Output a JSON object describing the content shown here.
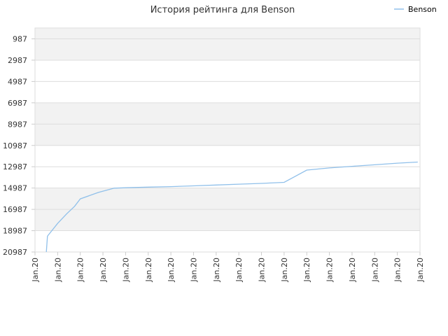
{
  "chart_data": {
    "type": "line",
    "title": "История рейтинга для Benson",
    "xlabel": "",
    "ylabel": "",
    "y_inverted": true,
    "ylim": [
      20987,
      0
    ],
    "y_ticks": [
      "987",
      "2987",
      "4987",
      "6987",
      "8987",
      "10987",
      "12987",
      "14987",
      "16987",
      "18987",
      "20987"
    ],
    "x_ticks": [
      "Jan.20",
      "Jan.20",
      "Jan.20",
      "Jan.20",
      "Jan.20",
      "Jan.20",
      "Jan.20",
      "Jan.20",
      "Jan.20",
      "Jan.20",
      "Jan.20",
      "Jan.20",
      "Jan.20",
      "Jan.20",
      "Jan.20",
      "Jan.20",
      "Jan.20",
      "Jan.20"
    ],
    "grid": true,
    "legend": "top-right",
    "colors": {
      "line": "#90c0ea",
      "band": "#f2f2f2",
      "grid": "#dddddd"
    },
    "series": [
      {
        "name": "Benson",
        "x": [
          0.5,
          0.55,
          1.0,
          1.4,
          1.75,
          2.0,
          2.8,
          3.5,
          4.0,
          5.0,
          6.0,
          7.0,
          8.0,
          9.0,
          10.0,
          11.0,
          12.0,
          13.0,
          14.0,
          15.0,
          16.0,
          16.9
        ],
        "values": [
          20987,
          19500,
          18300,
          17400,
          16700,
          16000,
          15400,
          15000,
          14960,
          14900,
          14850,
          14780,
          14700,
          14620,
          14550,
          14450,
          13300,
          13100,
          12950,
          12800,
          12650,
          12550
        ]
      }
    ]
  }
}
